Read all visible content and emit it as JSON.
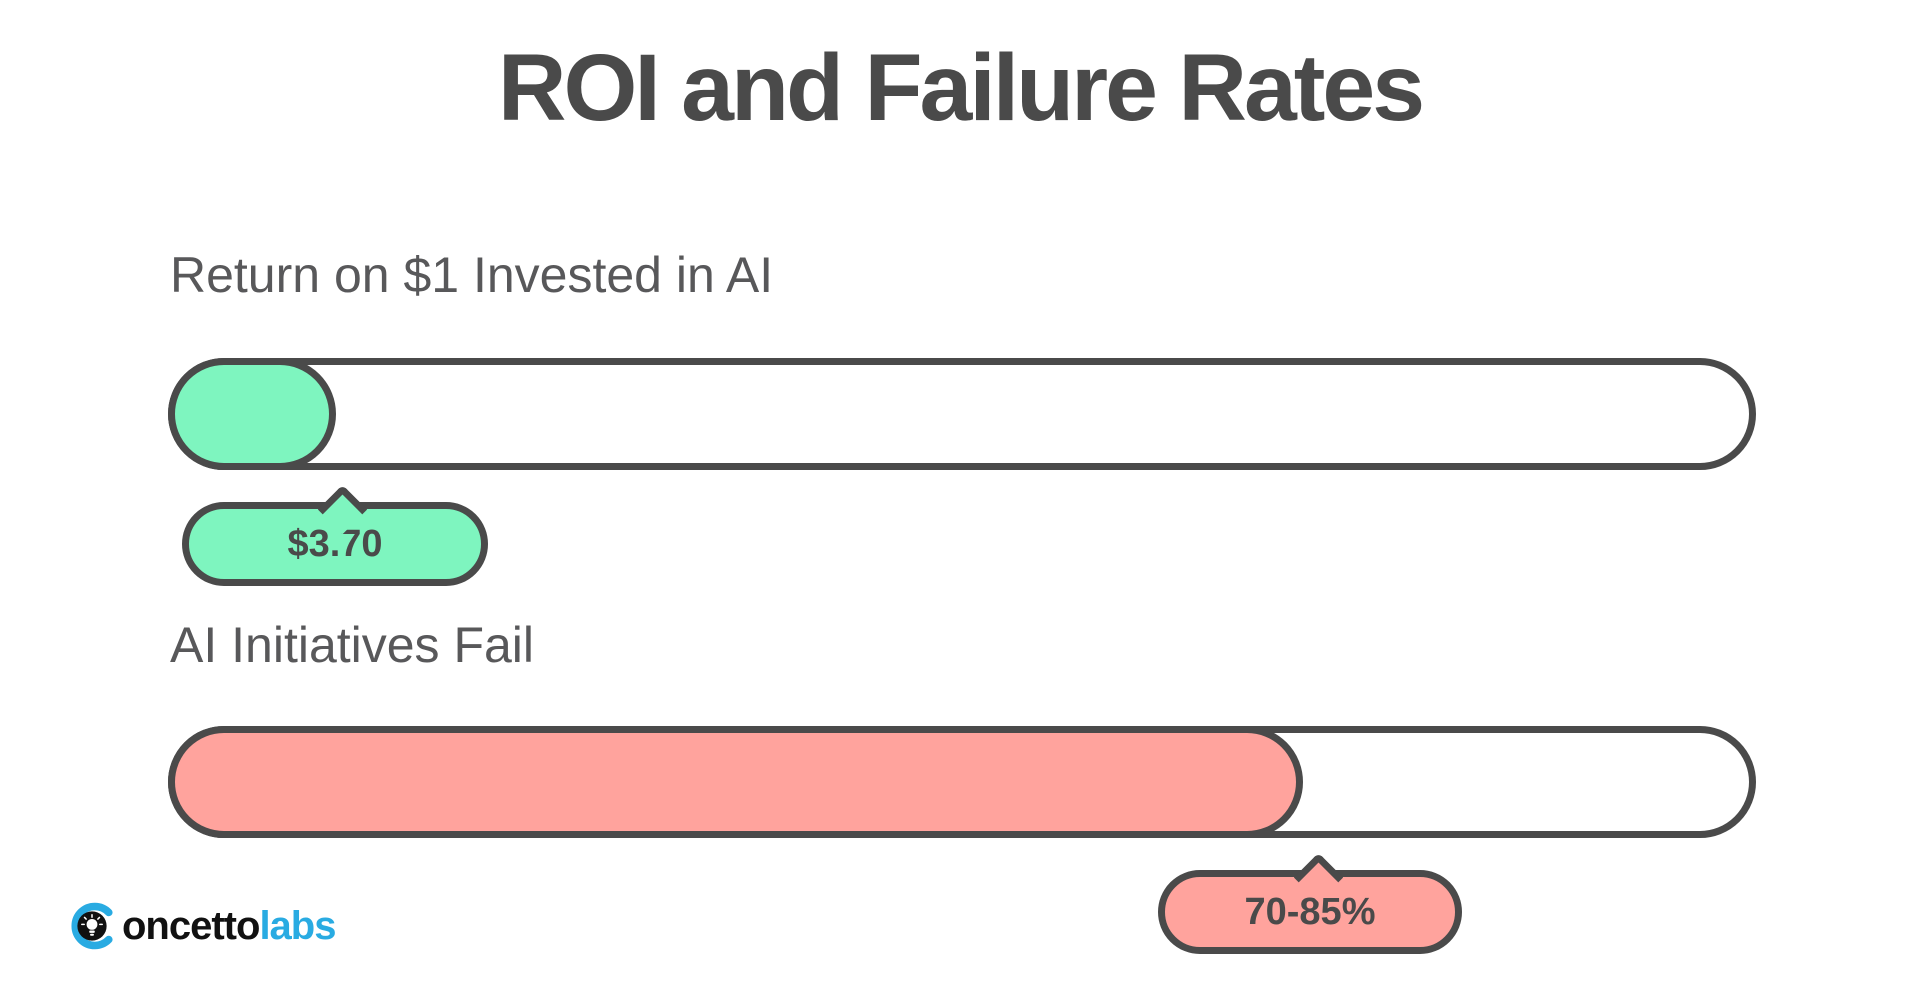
{
  "colors": {
    "green": "#7ef5bf",
    "red": "#ffa39d",
    "outline": "#4a4a4a",
    "label_gray": "#58585a",
    "blue": "#29abe2"
  },
  "chart_data": {
    "type": "bar",
    "orientation": "horizontal",
    "title": "ROI and Failure Rates",
    "categories": [
      "Return on $1 Invested in AI",
      "AI Initiatives Fail"
    ],
    "value_labels": [
      "$3.70",
      "70-85%"
    ],
    "fill_percent_of_track": [
      10.7,
      72.1
    ],
    "xlim": [
      0,
      100
    ],
    "grid": false,
    "legend": false,
    "bars": [
      {
        "label": "Return on $1 Invested in AI",
        "value_label": "$3.70",
        "fill_percent": 10.7,
        "color": "#7ef5bf"
      },
      {
        "label": "AI Initiatives Fail",
        "value_label": "70-85%",
        "fill_percent": 72.1,
        "color": "#ffa39d"
      }
    ]
  },
  "logo": {
    "icon": "lightbulb-in-c-mark",
    "text_black": "oncetto",
    "text_blue": "labs"
  }
}
